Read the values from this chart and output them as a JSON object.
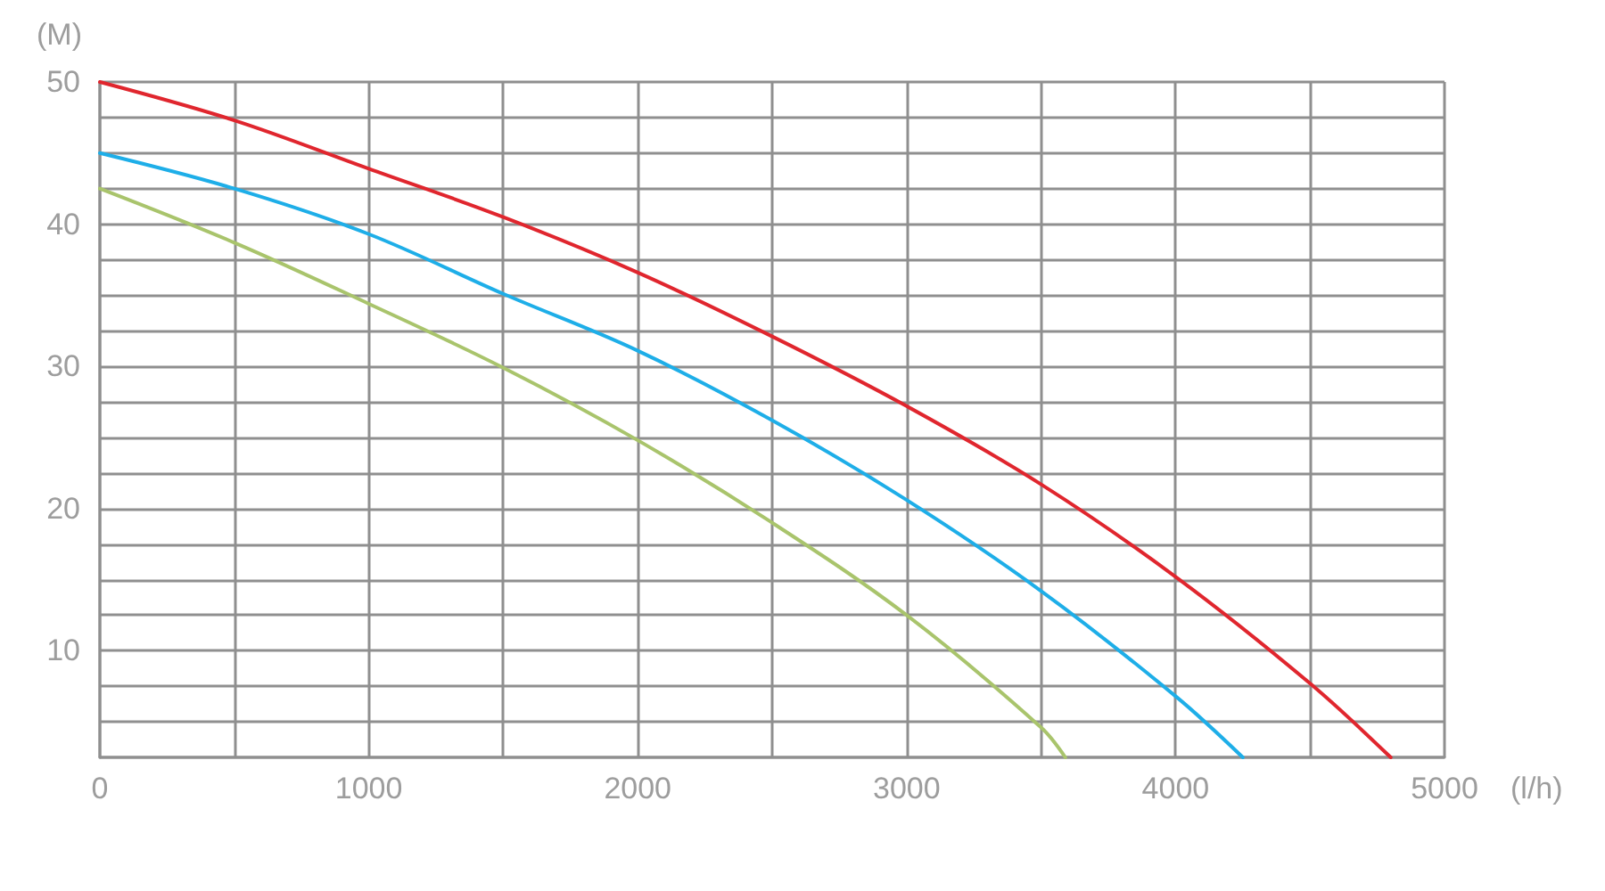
{
  "chart_data": {
    "type": "line",
    "xlabel": "(l/h)",
    "ylabel": "(M)",
    "xlim": [
      0,
      5000
    ],
    "xticks": [
      0,
      {
        "value": 500,
        "label": null
      },
      1000,
      {
        "value": 1500,
        "label": null
      },
      2000,
      {
        "value": 2500,
        "label": null
      },
      3000,
      {
        "value": 3500,
        "label": null
      },
      4000,
      {
        "value": 4500,
        "label": null
      },
      5000
    ],
    "ylim": [
      2.5,
      50
    ],
    "yticks": [
      {
        "value": 2.5,
        "label": null
      },
      {
        "value": 5,
        "label": null
      },
      {
        "value": 7.5,
        "label": null
      },
      10,
      {
        "value": 12.5,
        "label": null
      },
      {
        "value": 15,
        "label": null
      },
      {
        "value": 17.5,
        "label": null
      },
      20,
      {
        "value": 22.5,
        "label": null
      },
      {
        "value": 25,
        "label": null
      },
      {
        "value": 27.5,
        "label": null
      },
      30,
      {
        "value": 32.5,
        "label": null
      },
      {
        "value": 35,
        "label": null
      },
      {
        "value": 37.5,
        "label": null
      },
      40,
      {
        "value": 42.5,
        "label": null
      },
      {
        "value": 45,
        "label": null
      },
      {
        "value": 47.5,
        "label": null
      },
      50
    ],
    "grid": true,
    "marker": "none",
    "line_style": "solid",
    "series": [
      {
        "color": "#a9c46c",
        "x": [
          0,
          500,
          1000,
          1500,
          2000,
          2500,
          3000,
          3500,
          3590
        ],
        "values": [
          42.5,
          38.7,
          34.4,
          29.9,
          24.8,
          19.0,
          12.5,
          4.6,
          2.5
        ]
      },
      {
        "color": "#1eaee8",
        "x": [
          0,
          500,
          1000,
          1500,
          2000,
          2500,
          3000,
          3500,
          4000,
          4250
        ],
        "values": [
          45.0,
          42.5,
          39.3,
          35.1,
          31.1,
          26.2,
          20.6,
          14.2,
          6.8,
          2.5
        ]
      },
      {
        "color": "#e0262e",
        "x": [
          0,
          500,
          1000,
          1500,
          2000,
          2500,
          3000,
          3500,
          4000,
          4500,
          4800
        ],
        "values": [
          50.0,
          47.3,
          43.9,
          40.5,
          36.6,
          32.1,
          27.2,
          21.7,
          15.2,
          7.7,
          2.5
        ]
      }
    ]
  }
}
